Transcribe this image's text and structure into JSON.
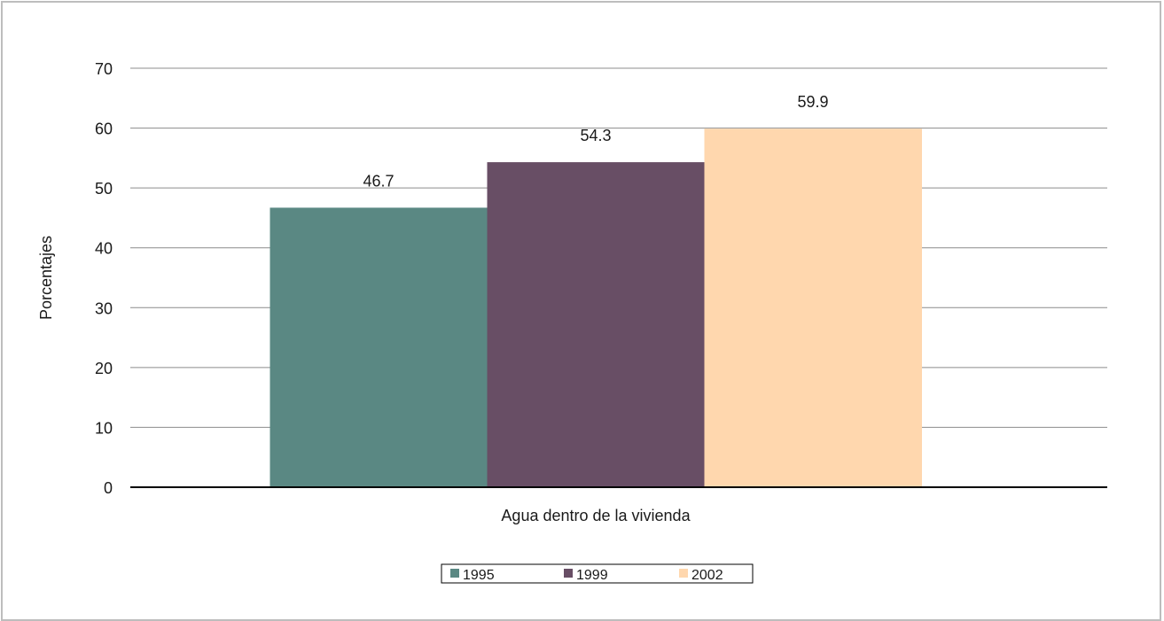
{
  "chart_data": {
    "type": "bar",
    "categories": [
      "Agua dentro de la vivienda"
    ],
    "series": [
      {
        "name": "1995",
        "values": [
          46.7
        ],
        "color": "#5a8883"
      },
      {
        "name": "1999",
        "values": [
          54.3
        ],
        "color": "#684e65"
      },
      {
        "name": "2002",
        "values": [
          59.9
        ],
        "color": "#ffd7ae"
      }
    ],
    "data_labels": [
      "46.7",
      "54.3",
      "59.9"
    ],
    "title": "",
    "xlabel": "",
    "ylabel": "Porcentajes",
    "ylim": [
      0,
      70
    ],
    "yticks": [
      0,
      10,
      20,
      30,
      40,
      50,
      60,
      70
    ],
    "grid": true,
    "legend_position": "bottom"
  }
}
